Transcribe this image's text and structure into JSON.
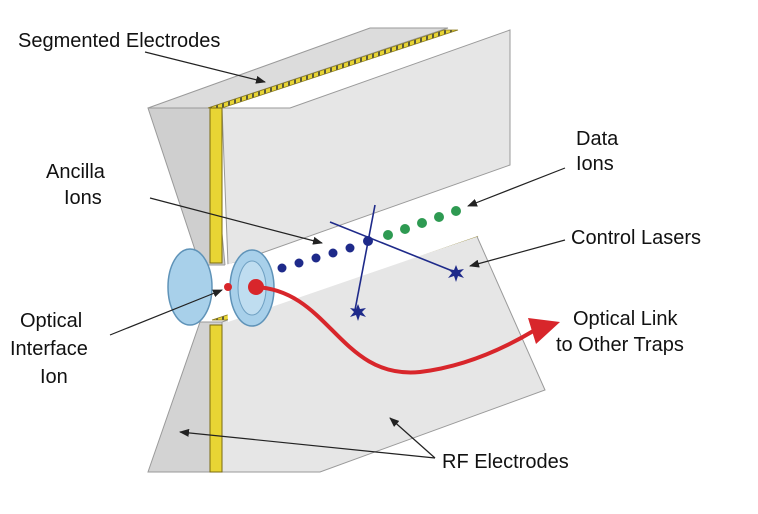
{
  "labels": {
    "segmented_electrodes": "Segmented Electrodes",
    "data_ions": [
      "Data",
      "Ions"
    ],
    "ancilla_ions": [
      "Ancilla",
      "Ions"
    ],
    "control_lasers": "Control Lasers",
    "optical_interface_ion": [
      "Optical",
      "Interface",
      "Ion"
    ],
    "optical_link": [
      "Optical Link",
      "to Other Traps"
    ],
    "rf_electrodes": "RF Electrodes"
  },
  "colors": {
    "electrode_face": "#e6e6e6",
    "electrode_face_dark": "#d3d3d3",
    "electrode_edge": "#9a9a9a",
    "gold_strip": "#e8d534",
    "lens": "#a8d0ea",
    "lens_edge": "#5f93b8",
    "ancilla_ion": "#1e2a8a",
    "data_ion": "#2e9a52",
    "control_laser": "#1e2a8a",
    "interface_ion": "#d8262b",
    "optical_link": "#d8262b"
  },
  "ions": {
    "ancilla_count": 6,
    "data_count": 6,
    "interface_count": 1
  }
}
